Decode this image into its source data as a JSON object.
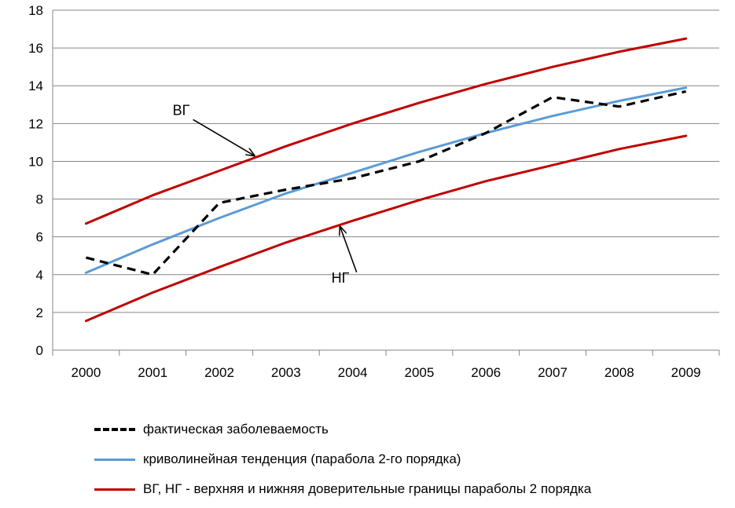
{
  "chart_data": {
    "type": "line",
    "categories": [
      "2000",
      "2001",
      "2002",
      "2003",
      "2004",
      "2005",
      "2006",
      "2007",
      "2008",
      "2009"
    ],
    "ylim": [
      0,
      18
    ],
    "yticks": [
      "0",
      "2",
      "4",
      "6",
      "8",
      "10",
      "12",
      "14",
      "16",
      "18"
    ],
    "grid": true,
    "legend_position": "bottom",
    "series": [
      {
        "key": "actual",
        "name": "фактическая заболеваемость",
        "color": "#000000",
        "style": "dashed",
        "values": [
          4.9,
          4.0,
          7.8,
          8.5,
          9.1,
          10.0,
          11.5,
          13.4,
          12.9,
          13.7
        ]
      },
      {
        "key": "trend",
        "name": "криволинейная тенденция (парабола 2-го порядка)",
        "color": "#5B9BD5",
        "style": "solid",
        "values": [
          4.1,
          5.6,
          7.0,
          8.3,
          9.4,
          10.5,
          11.5,
          12.4,
          13.2,
          13.9
        ]
      },
      {
        "key": "upper",
        "name": "ВГ, НГ - верхняя и нижняя доверительные границы параболы 2 порядка",
        "color": "#C00000",
        "style": "solid",
        "values": [
          6.7,
          8.2,
          9.5,
          10.8,
          12.0,
          13.1,
          14.1,
          15.0,
          15.8,
          16.5
        ]
      },
      {
        "key": "lower",
        "name": "",
        "color": "#C00000",
        "style": "solid",
        "values": [
          1.55,
          3.05,
          4.4,
          5.7,
          6.85,
          7.95,
          8.95,
          9.8,
          10.65,
          11.35
        ]
      }
    ],
    "annotations": [
      {
        "key": "vg",
        "text": "ВГ",
        "points_to_series": "upper",
        "at_x": 2.55
      },
      {
        "key": "ng",
        "text": "НГ",
        "points_to_series": "lower",
        "at_x": 3.8
      }
    ]
  },
  "legend": [
    {
      "label": "фактическая заболеваемость",
      "color": "#000000",
      "style": "dashed"
    },
    {
      "label": "криволинейная тенденция (парабола 2-го порядка)",
      "color": "#5B9BD5",
      "style": "solid"
    },
    {
      "label": "ВГ, НГ - верхняя и нижняя доверительные границы параболы 2 порядка",
      "color": "#C00000",
      "style": "solid"
    }
  ]
}
